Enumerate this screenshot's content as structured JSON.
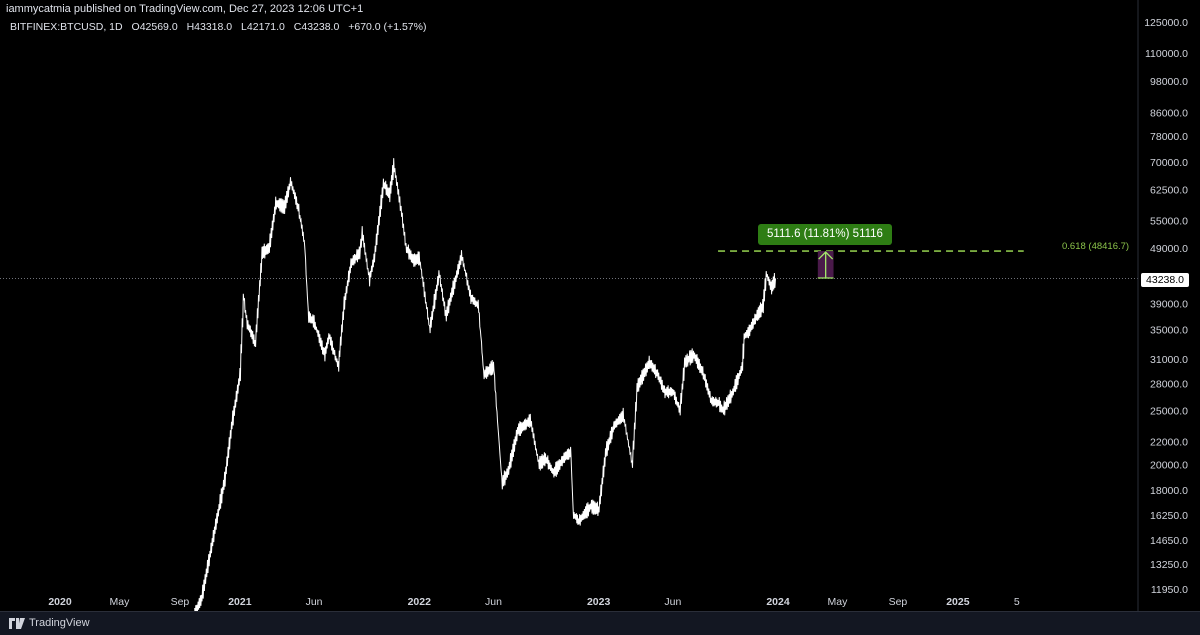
{
  "header": {
    "publisher": "iammycatmia published on TradingView.com, Dec 27, 2023 12:06 UTC+1",
    "symbol": "BITFINEX:BTCUSD, 1D",
    "open": "O42569.0",
    "high": "H43318.0",
    "low": "L42171.0",
    "close": "C43238.0",
    "change": "+670.0 (+1.57%)"
  },
  "footer": {
    "brand": "TradingView"
  },
  "colors": {
    "background": "#000000",
    "candles": "#ffffff",
    "fib_line": "#8bc34a",
    "measure_box": "#4a1a4a",
    "measure_label_bg": "#2e7d14"
  },
  "chart_data": {
    "type": "line",
    "series": [
      {
        "x": [
          "2020-10-01",
          "2020-10-15",
          "2020-11-01",
          "2020-11-15",
          "2020-12-01",
          "2020-12-15",
          "2021-01-01",
          "2021-01-08",
          "2021-01-15",
          "2021-02-01",
          "2021-02-15",
          "2021-03-01",
          "2021-03-15",
          "2021-04-01",
          "2021-04-14",
          "2021-05-01",
          "2021-05-12",
          "2021-05-20",
          "2021-06-01",
          "2021-06-22",
          "2021-07-01",
          "2021-07-20",
          "2021-08-01",
          "2021-08-15",
          "2021-09-01",
          "2021-09-07",
          "2021-09-21",
          "2021-10-01",
          "2021-10-20",
          "2021-11-01",
          "2021-11-10",
          "2021-11-25",
          "2021-12-05",
          "2021-12-20",
          "2022-01-01",
          "2022-01-22",
          "2022-02-10",
          "2022-02-24",
          "2022-03-28",
          "2022-04-15",
          "2022-05-01",
          "2022-05-12",
          "2022-06-01",
          "2022-06-18",
          "2022-07-01",
          "2022-07-20",
          "2022-08-15",
          "2022-09-01",
          "2022-09-15",
          "2022-10-01",
          "2022-10-25",
          "2022-11-05",
          "2022-11-10",
          "2022-11-21",
          "2022-12-15",
          "2023-01-01",
          "2023-01-15",
          "2023-02-01",
          "2023-02-20",
          "2023-03-10",
          "2023-03-20",
          "2023-04-14",
          "2023-05-01",
          "2023-05-15",
          "2023-06-01",
          "2023-06-15",
          "2023-06-25",
          "2023-07-13",
          "2023-08-01",
          "2023-08-18",
          "2023-09-01",
          "2023-09-11",
          "2023-10-01",
          "2023-10-20",
          "2023-10-24",
          "2023-11-01",
          "2023-11-15",
          "2023-12-01",
          "2023-12-08",
          "2023-12-18",
          "2023-12-27"
        ],
        "values": [
          10800,
          11500,
          13800,
          16000,
          18800,
          23500,
          29000,
          40000,
          36000,
          33000,
          48000,
          49000,
          59000,
          58000,
          64500,
          57000,
          50000,
          37000,
          36000,
          31500,
          34000,
          30000,
          39000,
          46000,
          48000,
          52000,
          43000,
          47000,
          64000,
          61000,
          69000,
          57000,
          49000,
          46500,
          47000,
          35000,
          44000,
          37000,
          47500,
          40000,
          38500,
          29000,
          30000,
          18500,
          19500,
          23000,
          24000,
          20000,
          20500,
          19300,
          20700,
          21000,
          16300,
          15800,
          16800,
          16600,
          21000,
          23500,
          24500,
          20000,
          27500,
          30500,
          29000,
          27000,
          27000,
          25000,
          30500,
          31500,
          29200,
          26000,
          25800,
          25000,
          27000,
          30000,
          34000,
          34500,
          36500,
          38500,
          44000,
          41500,
          43238
        ]
      }
    ],
    "ylim": [
      11950,
      125000
    ],
    "log_scale": true,
    "y_ticks": [
      "125000.0",
      "110000.0",
      "98000.0",
      "86000.0",
      "78000.0",
      "70000.0",
      "62500.0",
      "55000.0",
      "49000.0",
      "43238.0",
      "39000.0",
      "35000.0",
      "31000.0",
      "28000.0",
      "25000.0",
      "22000.0",
      "20000.0",
      "18000.0",
      "16250.0",
      "14650.0",
      "13250.0",
      "11950.0"
    ],
    "x_ticks": [
      {
        "label": "2020",
        "x": "2020-01-01"
      },
      {
        "label": "May",
        "x": "2020-05-01"
      },
      {
        "label": "Sep",
        "x": "2020-09-01"
      },
      {
        "label": "2021",
        "x": "2021-01-01"
      },
      {
        "label": "Jun",
        "x": "2021-06-01"
      },
      {
        "label": "2022",
        "x": "2022-01-01"
      },
      {
        "label": "Jun",
        "x": "2022-06-01"
      },
      {
        "label": "2023",
        "x": "2023-01-01"
      },
      {
        "label": "Jun",
        "x": "2023-06-01"
      },
      {
        "label": "2024",
        "x": "2024-01-01"
      },
      {
        "label": "May",
        "x": "2024-05-01"
      },
      {
        "label": "Sep",
        "x": "2024-09-01"
      },
      {
        "label": "2025",
        "x": "2025-01-01"
      },
      {
        "label": "5",
        "x": "2025-05-01"
      }
    ],
    "current_price": 43238.0,
    "current_price_label": "43238.0",
    "fib_level": {
      "value": 48416.7,
      "label": "0.618 (48416.7)",
      "x_start": "2023-09-01",
      "x_end": "2025-05-15"
    },
    "measure": {
      "from": 43304.4,
      "to": 48416.0,
      "label": "5111.6 (11.81%) 51116",
      "x_start": "2024-03-22",
      "x_end": "2024-04-23"
    },
    "grid": false
  }
}
